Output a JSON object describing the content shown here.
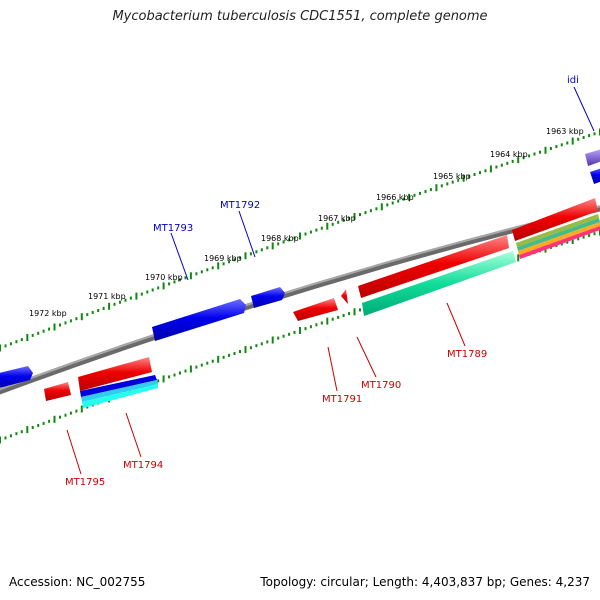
{
  "title": "Mycobacterium tuberculosis CDC1551, complete genome",
  "footer": {
    "accession": "Accession: NC_002755",
    "stats": "Topology: circular; Length: 4,403,837 bp; Genes: 4,237"
  },
  "colors": {
    "backbone": "#808080",
    "tick": "#118811",
    "forward_label": "#0000cc",
    "reverse_label": "#cc0000",
    "forward_gene": "#0000ee",
    "reverse_gene": "#ee0000",
    "rrna_gene": "#11dd99",
    "idi_gene": "#7755cc"
  },
  "scale_labels": [
    "1972 kbp",
    "1971 kbp",
    "1970 kbp",
    "1969 kbp",
    "1968 kbp",
    "1967 kbp",
    "1966 kbp",
    "1965 kbp",
    "1964 kbp",
    "1963 kbp"
  ],
  "gene_labels": {
    "forward": [
      "MT1793",
      "MT1792",
      "idi"
    ],
    "reverse": [
      "MT1795",
      "MT1794",
      "MT1791",
      "MT1790",
      "MT1789"
    ]
  }
}
